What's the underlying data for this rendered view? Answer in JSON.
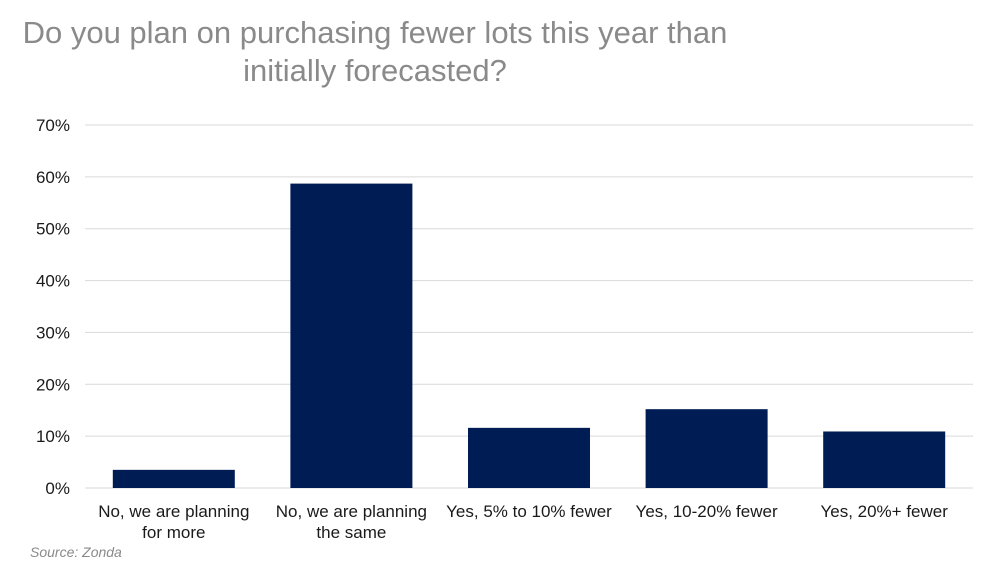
{
  "chart_data": {
    "type": "bar",
    "title_lines": [
      "Do you plan on purchasing fewer lots this year than",
      "initially forecasted?"
    ],
    "categories": [
      [
        "No, we are planning",
        "for more"
      ],
      [
        "No, we are planning",
        "the same"
      ],
      [
        "Yes, 5% to 10% fewer"
      ],
      [
        "Yes, 10-20% fewer"
      ],
      [
        "Yes, 20%+ fewer"
      ]
    ],
    "values": [
      3.5,
      58.7,
      11.6,
      15.2,
      10.9
    ],
    "ylim": [
      0,
      70
    ],
    "yticks": [
      0,
      10,
      20,
      30,
      40,
      50,
      60,
      70
    ],
    "ytick_labels": [
      "0%",
      "10%",
      "20%",
      "30%",
      "40%",
      "50%",
      "60%",
      "70%"
    ],
    "grid": true,
    "bar_color": "#001c54",
    "gridline_color": "#d9d9d9"
  },
  "source": "Source: Zonda"
}
